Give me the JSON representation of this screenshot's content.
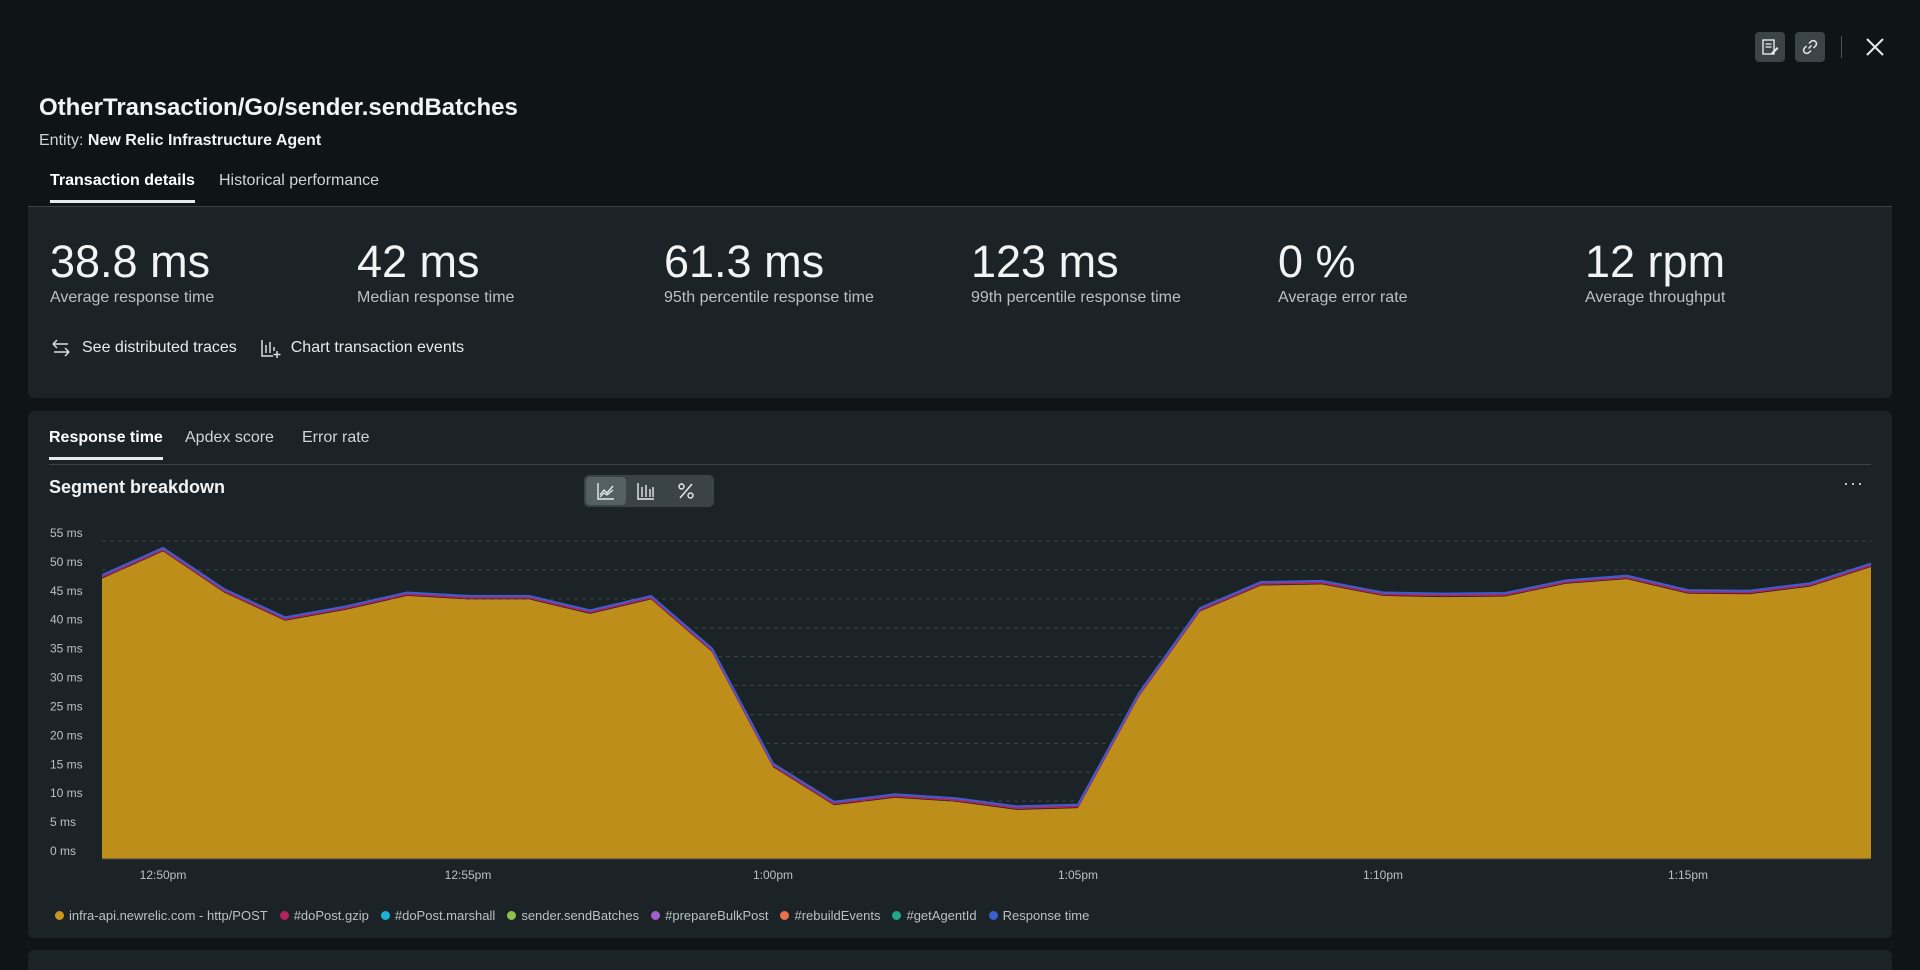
{
  "header": {
    "title": "OtherTransaction/Go/sender.sendBatches",
    "entity_prefix": "Entity:",
    "entity_name": "New Relic Infrastructure Agent"
  },
  "top_tabs": [
    "Transaction details",
    "Historical performance"
  ],
  "metrics": [
    {
      "value": "38.8 ms",
      "label": "Average response time"
    },
    {
      "value": "42 ms",
      "label": "Median response time"
    },
    {
      "value": "61.3 ms",
      "label": "95th percentile response time"
    },
    {
      "value": "123 ms",
      "label": "99th percentile response time"
    },
    {
      "value": "0 %",
      "label": "Average error rate"
    },
    {
      "value": "12 rpm",
      "label": "Average throughput"
    }
  ],
  "links": {
    "traces": "See distributed traces",
    "events": "Chart transaction events"
  },
  "chart_tabs": [
    "Response time",
    "Apdex score",
    "Error rate"
  ],
  "chart_panel": {
    "title": "Segment breakdown",
    "more": "···"
  },
  "colors": {
    "area": "#bd8f1a",
    "response_line": "#3b5fd1",
    "gzip_line": "#b3245f"
  },
  "chart_data": {
    "type": "area",
    "title": "Segment breakdown",
    "x_tick_labels": [
      "12:50pm",
      "12:55pm",
      "1:00pm",
      "1:05pm",
      "1:10pm",
      "1:15pm"
    ],
    "y_tick_labels": [
      "0 ms",
      "5 ms",
      "10 ms",
      "15 ms",
      "20 ms",
      "25 ms",
      "30 ms",
      "35 ms",
      "40 ms",
      "45 ms",
      "50 ms",
      "55 ms"
    ],
    "ylim": [
      0,
      55
    ],
    "x_minutes_from_1250": [
      -1,
      0,
      1,
      2,
      3,
      4,
      5,
      6,
      7,
      8,
      9,
      10,
      11,
      12,
      13,
      14,
      15,
      16,
      17,
      18,
      19,
      20,
      21,
      22,
      23,
      24,
      25,
      26,
      27,
      28
    ],
    "series": [
      {
        "name": "infra-api.newrelic.com - http/POST",
        "color": "#c8961c",
        "values": [
          48.5,
          53.2,
          46.1,
          41.2,
          43.1,
          45.5,
          44.9,
          44.9,
          42.4,
          44.9,
          35.8,
          15.9,
          9.3,
          10.6,
          9.9,
          8.5,
          8.8,
          28.1,
          42.8,
          47.3,
          47.5,
          45.5,
          45.3,
          45.4,
          47.6,
          48.4,
          45.9,
          45.8,
          47.1,
          50.5
        ]
      },
      {
        "name": "#doPost.gzip",
        "color": "#b3245f",
        "values": [
          0.3,
          0.3,
          0.3,
          0.3,
          0.3,
          0.3,
          0.3,
          0.3,
          0.3,
          0.3,
          0.3,
          0.3,
          0.3,
          0.3,
          0.3,
          0.3,
          0.3,
          0.3,
          0.3,
          0.3,
          0.3,
          0.3,
          0.3,
          0.3,
          0.3,
          0.3,
          0.3,
          0.3,
          0.3,
          0.3
        ]
      },
      {
        "name": "#doPost.marshall",
        "color": "#1fb0d6",
        "values": []
      },
      {
        "name": "sender.sendBatches",
        "color": "#8bc34a",
        "values": []
      },
      {
        "name": "#prepareBulkPost",
        "color": "#a35fc9",
        "values": []
      },
      {
        "name": "#rebuildEvents",
        "color": "#e8704a",
        "values": []
      },
      {
        "name": "#getAgentId",
        "color": "#1ea88a",
        "values": []
      },
      {
        "name": "Response time",
        "color": "#3b5fd1",
        "values": [
          49.1,
          53.8,
          46.7,
          41.8,
          43.7,
          46.1,
          45.5,
          45.5,
          43.0,
          45.5,
          36.4,
          16.5,
          9.9,
          11.2,
          10.5,
          9.1,
          9.4,
          28.7,
          43.4,
          47.9,
          48.1,
          46.1,
          45.9,
          46.0,
          48.2,
          49.0,
          46.5,
          46.4,
          47.7,
          51.1
        ]
      }
    ],
    "grid": true,
    "legend": "bottom"
  }
}
